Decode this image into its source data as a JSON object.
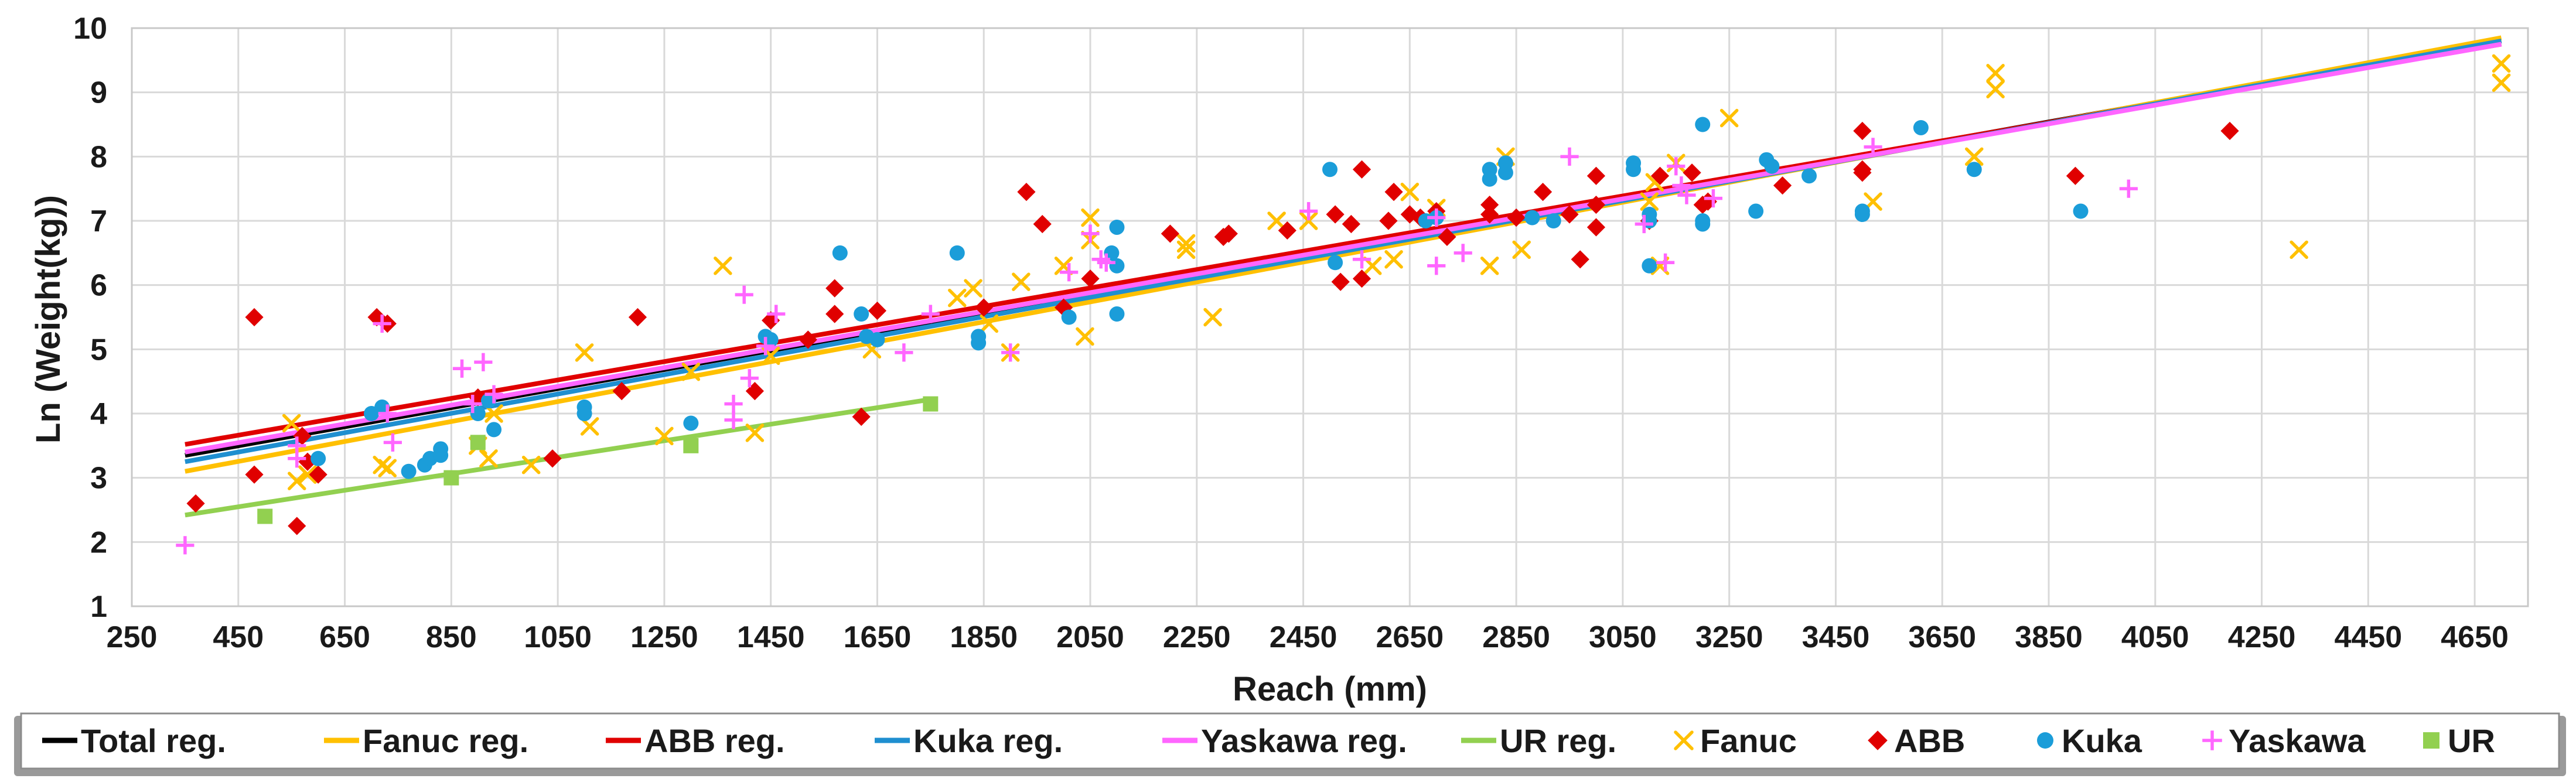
{
  "chart_data": {
    "type": "scatter",
    "title": "",
    "xlabel": "Reach (mm)",
    "ylabel": "Ln (Weight(kg))",
    "xlim": [
      250,
      4750
    ],
    "ylim": [
      1,
      10
    ],
    "xticks": [
      250,
      450,
      650,
      850,
      1050,
      1250,
      1450,
      1650,
      1850,
      2050,
      2250,
      2450,
      2650,
      2850,
      3050,
      3250,
      3450,
      3650,
      3850,
      4050,
      4250,
      4450,
      4650
    ],
    "yticks": [
      1,
      2,
      3,
      4,
      5,
      6,
      7,
      8,
      9,
      10
    ],
    "grid": true,
    "legend_position": "bottom",
    "regressions": [
      {
        "name": "Total reg.",
        "color": "#000000",
        "x": [
          350,
          4700
        ],
        "y": [
          3.35,
          9.8
        ]
      },
      {
        "name": "Fanuc reg.",
        "color": "#FFC000",
        "x": [
          350,
          4700
        ],
        "y": [
          3.1,
          9.85
        ]
      },
      {
        "name": "ABB reg.",
        "color": "#E00000",
        "x": [
          350,
          4700
        ],
        "y": [
          3.52,
          9.75
        ]
      },
      {
        "name": "Kuka reg.",
        "color": "#1F8FD0",
        "x": [
          350,
          4700
        ],
        "y": [
          3.25,
          9.8
        ]
      },
      {
        "name": "Yaskawa reg.",
        "color": "#FF66FF",
        "x": [
          350,
          4700
        ],
        "y": [
          3.4,
          9.75
        ]
      },
      {
        "name": "UR reg.",
        "color": "#92D050",
        "x": [
          350,
          1750
        ],
        "y": [
          2.42,
          4.22
        ]
      }
    ],
    "series": [
      {
        "name": "Fanuc",
        "marker": "x",
        "color": "#FFC000",
        "points": [
          [
            550,
            3.85
          ],
          [
            560,
            2.95
          ],
          [
            580,
            3.05
          ],
          [
            720,
            3.2
          ],
          [
            730,
            3.15
          ],
          [
            900,
            3.5
          ],
          [
            920,
            3.3
          ],
          [
            930,
            4.0
          ],
          [
            1000,
            3.2
          ],
          [
            1100,
            4.95
          ],
          [
            1110,
            3.8
          ],
          [
            1250,
            3.65
          ],
          [
            1300,
            4.65
          ],
          [
            1360,
            6.3
          ],
          [
            1420,
            3.7
          ],
          [
            1450,
            4.9
          ],
          [
            1640,
            5.0
          ],
          [
            1800,
            5.8
          ],
          [
            1830,
            5.95
          ],
          [
            1860,
            5.4
          ],
          [
            1900,
            4.95
          ],
          [
            1920,
            6.05
          ],
          [
            2000,
            6.3
          ],
          [
            2040,
            5.2
          ],
          [
            2050,
            7.05
          ],
          [
            2050,
            6.7
          ],
          [
            2230,
            6.65
          ],
          [
            2230,
            6.55
          ],
          [
            2280,
            5.5
          ],
          [
            2400,
            7.0
          ],
          [
            2460,
            7.0
          ],
          [
            2580,
            6.3
          ],
          [
            2620,
            6.4
          ],
          [
            2650,
            7.45
          ],
          [
            2700,
            7.2
          ],
          [
            2800,
            6.3
          ],
          [
            2830,
            8.0
          ],
          [
            2860,
            6.55
          ],
          [
            3100,
            7.3
          ],
          [
            3110,
            7.6
          ],
          [
            3120,
            6.3
          ],
          [
            3150,
            7.9
          ],
          [
            3250,
            8.6
          ],
          [
            3520,
            7.3
          ],
          [
            3710,
            8.0
          ],
          [
            3750,
            9.3
          ],
          [
            3750,
            9.05
          ],
          [
            4320,
            6.55
          ],
          [
            4700,
            9.45
          ],
          [
            4700,
            9.15
          ]
        ]
      },
      {
        "name": "ABB",
        "marker": "diamond",
        "color": "#E00000",
        "points": [
          [
            370,
            2.6
          ],
          [
            480,
            5.5
          ],
          [
            480,
            3.05
          ],
          [
            560,
            2.25
          ],
          [
            570,
            3.65
          ],
          [
            580,
            3.25
          ],
          [
            600,
            3.05
          ],
          [
            710,
            5.5
          ],
          [
            730,
            5.4
          ],
          [
            900,
            4.25
          ],
          [
            1040,
            3.3
          ],
          [
            1200,
            5.5
          ],
          [
            1170,
            4.35
          ],
          [
            1420,
            4.35
          ],
          [
            1450,
            5.45
          ],
          [
            1520,
            5.15
          ],
          [
            1570,
            5.95
          ],
          [
            1570,
            5.55
          ],
          [
            1620,
            3.95
          ],
          [
            1650,
            5.6
          ],
          [
            1850,
            5.65
          ],
          [
            1930,
            7.45
          ],
          [
            1960,
            6.95
          ],
          [
            2000,
            5.65
          ],
          [
            2050,
            6.1
          ],
          [
            2200,
            6.8
          ],
          [
            2300,
            6.75
          ],
          [
            2310,
            6.8
          ],
          [
            2420,
            6.85
          ],
          [
            2510,
            7.1
          ],
          [
            2520,
            6.05
          ],
          [
            2540,
            6.95
          ],
          [
            2560,
            7.8
          ],
          [
            2560,
            6.1
          ],
          [
            2610,
            7.0
          ],
          [
            2620,
            7.45
          ],
          [
            2650,
            7.1
          ],
          [
            2670,
            7.05
          ],
          [
            2700,
            7.15
          ],
          [
            2720,
            6.75
          ],
          [
            2800,
            7.25
          ],
          [
            2800,
            7.1
          ],
          [
            2850,
            7.05
          ],
          [
            2900,
            7.45
          ],
          [
            2950,
            7.1
          ],
          [
            2970,
            6.4
          ],
          [
            3000,
            7.7
          ],
          [
            3000,
            7.25
          ],
          [
            3000,
            6.9
          ],
          [
            3100,
            7.0
          ],
          [
            3120,
            7.7
          ],
          [
            3180,
            7.75
          ],
          [
            3200,
            7.25
          ],
          [
            3210,
            7.3
          ],
          [
            3350,
            7.55
          ],
          [
            3500,
            8.4
          ],
          [
            3500,
            7.75
          ],
          [
            3500,
            7.8
          ],
          [
            3900,
            7.7
          ],
          [
            4190,
            8.4
          ]
        ]
      },
      {
        "name": "Kuka",
        "marker": "circle",
        "color": "#1B9DD9",
        "points": [
          [
            600,
            3.3
          ],
          [
            700,
            4.0
          ],
          [
            720,
            4.1
          ],
          [
            770,
            3.1
          ],
          [
            800,
            3.2
          ],
          [
            810,
            3.3
          ],
          [
            830,
            3.35
          ],
          [
            830,
            3.45
          ],
          [
            900,
            4.0
          ],
          [
            920,
            4.2
          ],
          [
            930,
            3.75
          ],
          [
            1100,
            4.1
          ],
          [
            1100,
            4.0
          ],
          [
            1300,
            3.85
          ],
          [
            1440,
            5.2
          ],
          [
            1450,
            5.15
          ],
          [
            1580,
            6.5
          ],
          [
            1620,
            5.55
          ],
          [
            1630,
            5.2
          ],
          [
            1650,
            5.15
          ],
          [
            1800,
            6.5
          ],
          [
            1840,
            5.1
          ],
          [
            1840,
            5.2
          ],
          [
            2010,
            5.5
          ],
          [
            2090,
            6.5
          ],
          [
            2100,
            6.9
          ],
          [
            2100,
            6.3
          ],
          [
            2100,
            5.55
          ],
          [
            2500,
            7.8
          ],
          [
            2510,
            6.35
          ],
          [
            2680,
            7.0
          ],
          [
            2700,
            7.05
          ],
          [
            2800,
            7.8
          ],
          [
            2800,
            7.65
          ],
          [
            2830,
            7.9
          ],
          [
            2830,
            7.75
          ],
          [
            2880,
            7.05
          ],
          [
            2920,
            7.0
          ],
          [
            3070,
            7.9
          ],
          [
            3070,
            7.8
          ],
          [
            3100,
            6.3
          ],
          [
            3100,
            7.1
          ],
          [
            3100,
            7.0
          ],
          [
            3200,
            8.5
          ],
          [
            3200,
            7.0
          ],
          [
            3200,
            6.95
          ],
          [
            3300,
            7.15
          ],
          [
            3320,
            7.95
          ],
          [
            3330,
            7.85
          ],
          [
            3400,
            7.7
          ],
          [
            3500,
            7.15
          ],
          [
            3500,
            7.1
          ],
          [
            3610,
            8.45
          ],
          [
            3710,
            7.8
          ],
          [
            3910,
            7.15
          ]
        ]
      },
      {
        "name": "Yaskawa",
        "marker": "plus",
        "color": "#FF66FF",
        "points": [
          [
            350,
            1.95
          ],
          [
            560,
            3.5
          ],
          [
            560,
            3.3
          ],
          [
            720,
            5.4
          ],
          [
            730,
            4.0
          ],
          [
            740,
            3.55
          ],
          [
            870,
            4.7
          ],
          [
            890,
            4.15
          ],
          [
            910,
            4.8
          ],
          [
            930,
            4.3
          ],
          [
            1380,
            3.9
          ],
          [
            1380,
            4.15
          ],
          [
            1400,
            5.85
          ],
          [
            1410,
            4.55
          ],
          [
            1440,
            5.05
          ],
          [
            1460,
            5.55
          ],
          [
            1700,
            4.95
          ],
          [
            1750,
            5.55
          ],
          [
            1900,
            4.95
          ],
          [
            2010,
            6.2
          ],
          [
            2050,
            6.8
          ],
          [
            2070,
            6.4
          ],
          [
            2080,
            6.35
          ],
          [
            2460,
            7.15
          ],
          [
            2560,
            6.4
          ],
          [
            2700,
            6.3
          ],
          [
            2700,
            7.05
          ],
          [
            2750,
            6.5
          ],
          [
            2950,
            8.0
          ],
          [
            3090,
            6.95
          ],
          [
            3130,
            6.35
          ],
          [
            3150,
            7.85
          ],
          [
            3160,
            7.55
          ],
          [
            3170,
            7.4
          ],
          [
            3220,
            7.35
          ],
          [
            3520,
            8.15
          ],
          [
            4000,
            7.5
          ]
        ]
      },
      {
        "name": "UR",
        "marker": "square",
        "color": "#92D050",
        "points": [
          [
            500,
            2.4
          ],
          [
            850,
            3.0
          ],
          [
            900,
            3.55
          ],
          [
            1300,
            3.5
          ],
          [
            1750,
            4.15
          ]
        ]
      }
    ],
    "legend": [
      {
        "label": "Total reg.",
        "kind": "line",
        "color": "#000000"
      },
      {
        "label": "Fanuc reg.",
        "kind": "line",
        "color": "#FFC000"
      },
      {
        "label": "ABB reg.",
        "kind": "line",
        "color": "#E00000"
      },
      {
        "label": "Kuka reg.",
        "kind": "line",
        "color": "#1F8FD0"
      },
      {
        "label": "Yaskawa reg.",
        "kind": "line",
        "color": "#FF66FF"
      },
      {
        "label": "UR reg.",
        "kind": "line",
        "color": "#92D050"
      },
      {
        "label": "Fanuc",
        "kind": "x",
        "color": "#FFC000"
      },
      {
        "label": "ABB",
        "kind": "diamond",
        "color": "#E00000"
      },
      {
        "label": "Kuka",
        "kind": "circle",
        "color": "#1B9DD9"
      },
      {
        "label": "Yaskawa",
        "kind": "plus",
        "color": "#FF66FF"
      },
      {
        "label": "UR",
        "kind": "square",
        "color": "#92D050"
      }
    ]
  }
}
